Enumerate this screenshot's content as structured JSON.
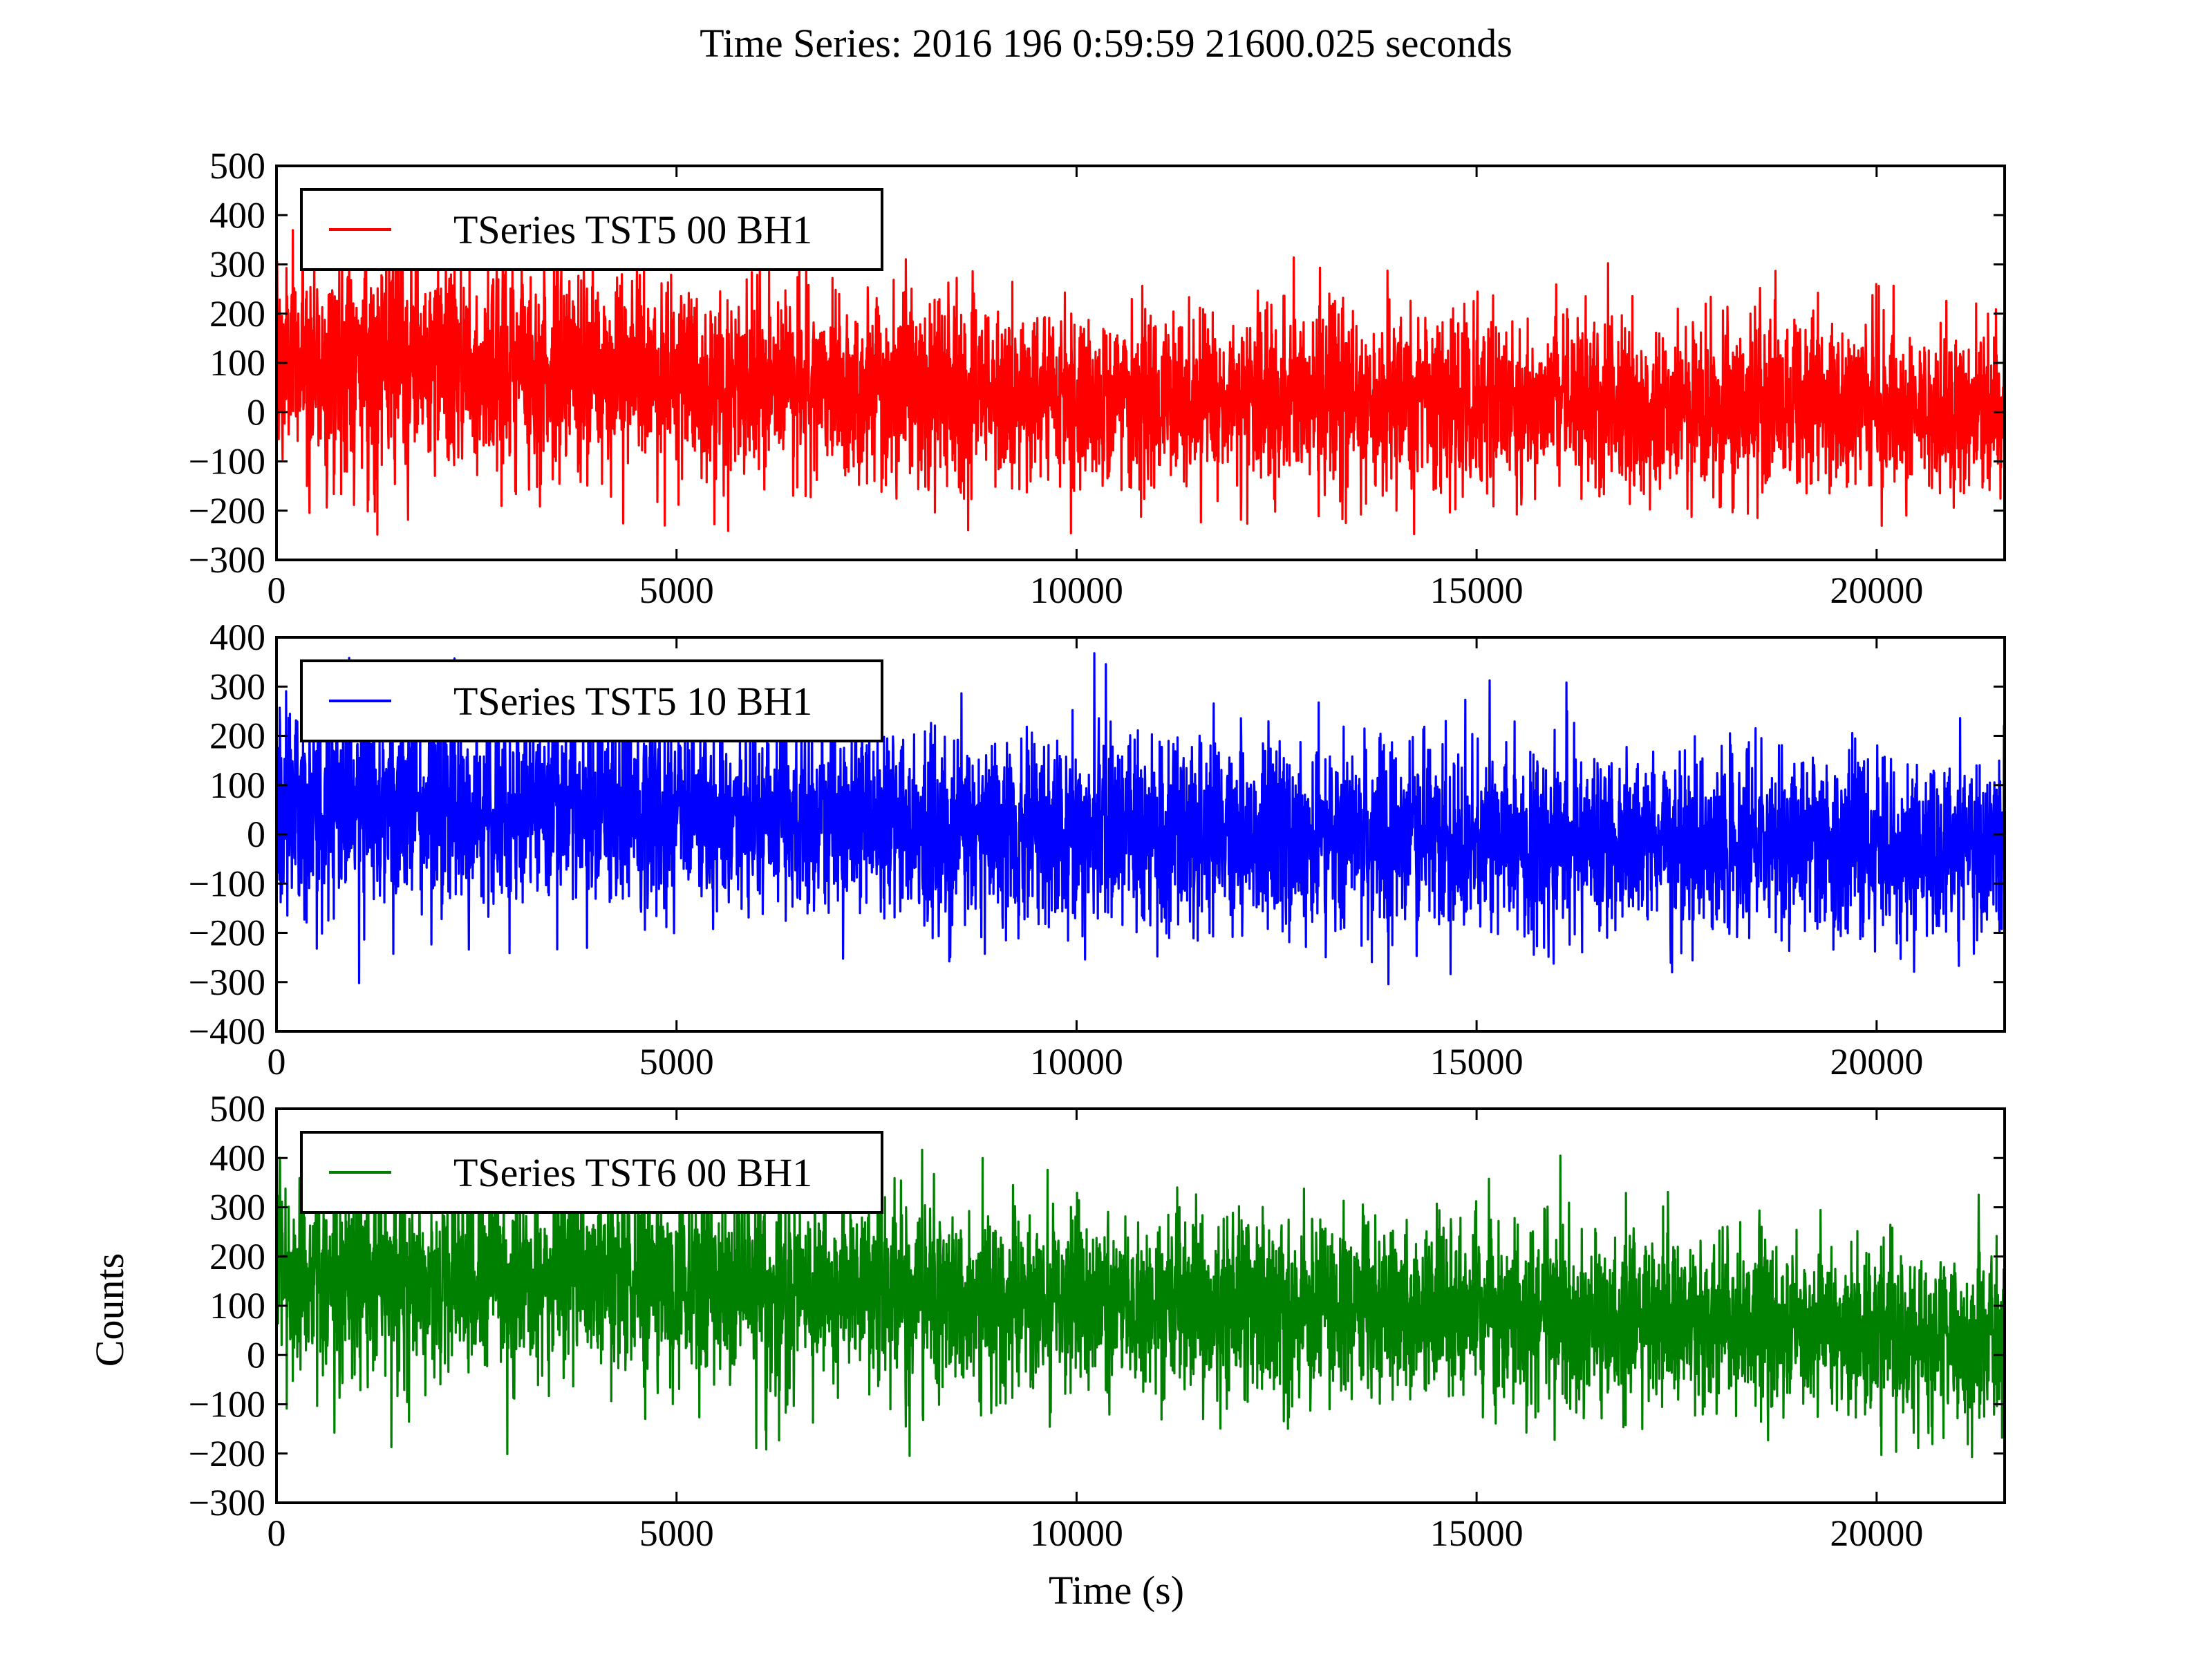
{
  "figure": {
    "title": "Time Series: 2016 196 0:59:59 21600.025 seconds",
    "xlabel": "Time (s)",
    "ylabel": "Counts"
  },
  "chart_data": [
    {
      "type": "line",
      "series": [
        {
          "name": "TSeries TST5 00 BH1",
          "color": "#ff0000",
          "x_range": [
            0,
            21600
          ],
          "points": 5400,
          "envelope": {
            "x": [
              0,
              2500,
              5000,
              7500,
              10000,
              12500,
              15000,
              17500,
              20000,
              21600
            ],
            "mean": [
              100,
              95,
              70,
              45,
              35,
              25,
              20,
              15,
              10,
              0
            ],
            "typical_spread": [
              110,
              110,
              100,
              100,
              90,
              90,
              85,
              85,
              85,
              80
            ]
          },
          "peak_max": 460,
          "peak_min": -250
        }
      ],
      "xlim": [
        0,
        21600
      ],
      "ylim": [
        -300,
        500
      ],
      "xticks": [
        "0",
        "5000",
        "10000",
        "15000",
        "20000"
      ],
      "yticks": [
        "−300",
        "−200",
        "−100",
        "0",
        "100",
        "200",
        "300",
        "400",
        "500"
      ],
      "legend": "top-left",
      "grid": false
    },
    {
      "type": "line",
      "series": [
        {
          "name": "TSeries TST5 10 BH1",
          "color": "#0000ff",
          "x_range": [
            0,
            21600
          ],
          "points": 5400,
          "envelope": {
            "x": [
              0,
              2500,
              5000,
              7500,
              10000,
              12500,
              15000,
              17500,
              20000,
              21600
            ],
            "mean": [
              60,
              55,
              40,
              20,
              5,
              -5,
              -15,
              -20,
              -25,
              -30
            ],
            "typical_spread": [
              100,
              100,
              95,
              95,
              95,
              95,
              95,
              90,
              90,
              90
            ]
          },
          "peak_max": 370,
          "peak_min": -320
        }
      ],
      "xlim": [
        0,
        21600
      ],
      "ylim": [
        -400,
        400
      ],
      "xticks": [
        "0",
        "5000",
        "10000",
        "15000",
        "20000"
      ],
      "yticks": [
        "−400",
        "−300",
        "−200",
        "−100",
        "0",
        "100",
        "200",
        "300",
        "400"
      ],
      "legend": "top-left",
      "grid": false
    },
    {
      "type": "line",
      "series": [
        {
          "name": "TSeries TST6 00 BH1",
          "color": "#008000",
          "x_range": [
            0,
            21600
          ],
          "points": 5400,
          "envelope": {
            "x": [
              0,
              2500,
              5000,
              7500,
              10000,
              12500,
              15000,
              17500,
              20000,
              21600
            ],
            "mean": [
              160,
              160,
              145,
              130,
              110,
              100,
              90,
              70,
              50,
              20
            ],
            "typical_spread": [
              100,
              100,
              95,
              95,
              90,
              90,
              90,
              85,
              85,
              85
            ]
          },
          "peak_max": 450,
          "peak_min": -250
        }
      ],
      "xlim": [
        0,
        21600
      ],
      "ylim": [
        -300,
        500
      ],
      "xticks": [
        "0",
        "5000",
        "10000",
        "15000",
        "20000"
      ],
      "yticks": [
        "−300",
        "−200",
        "−100",
        "0",
        "100",
        "200",
        "300",
        "400",
        "500"
      ],
      "legend": "top-left",
      "grid": false
    }
  ]
}
